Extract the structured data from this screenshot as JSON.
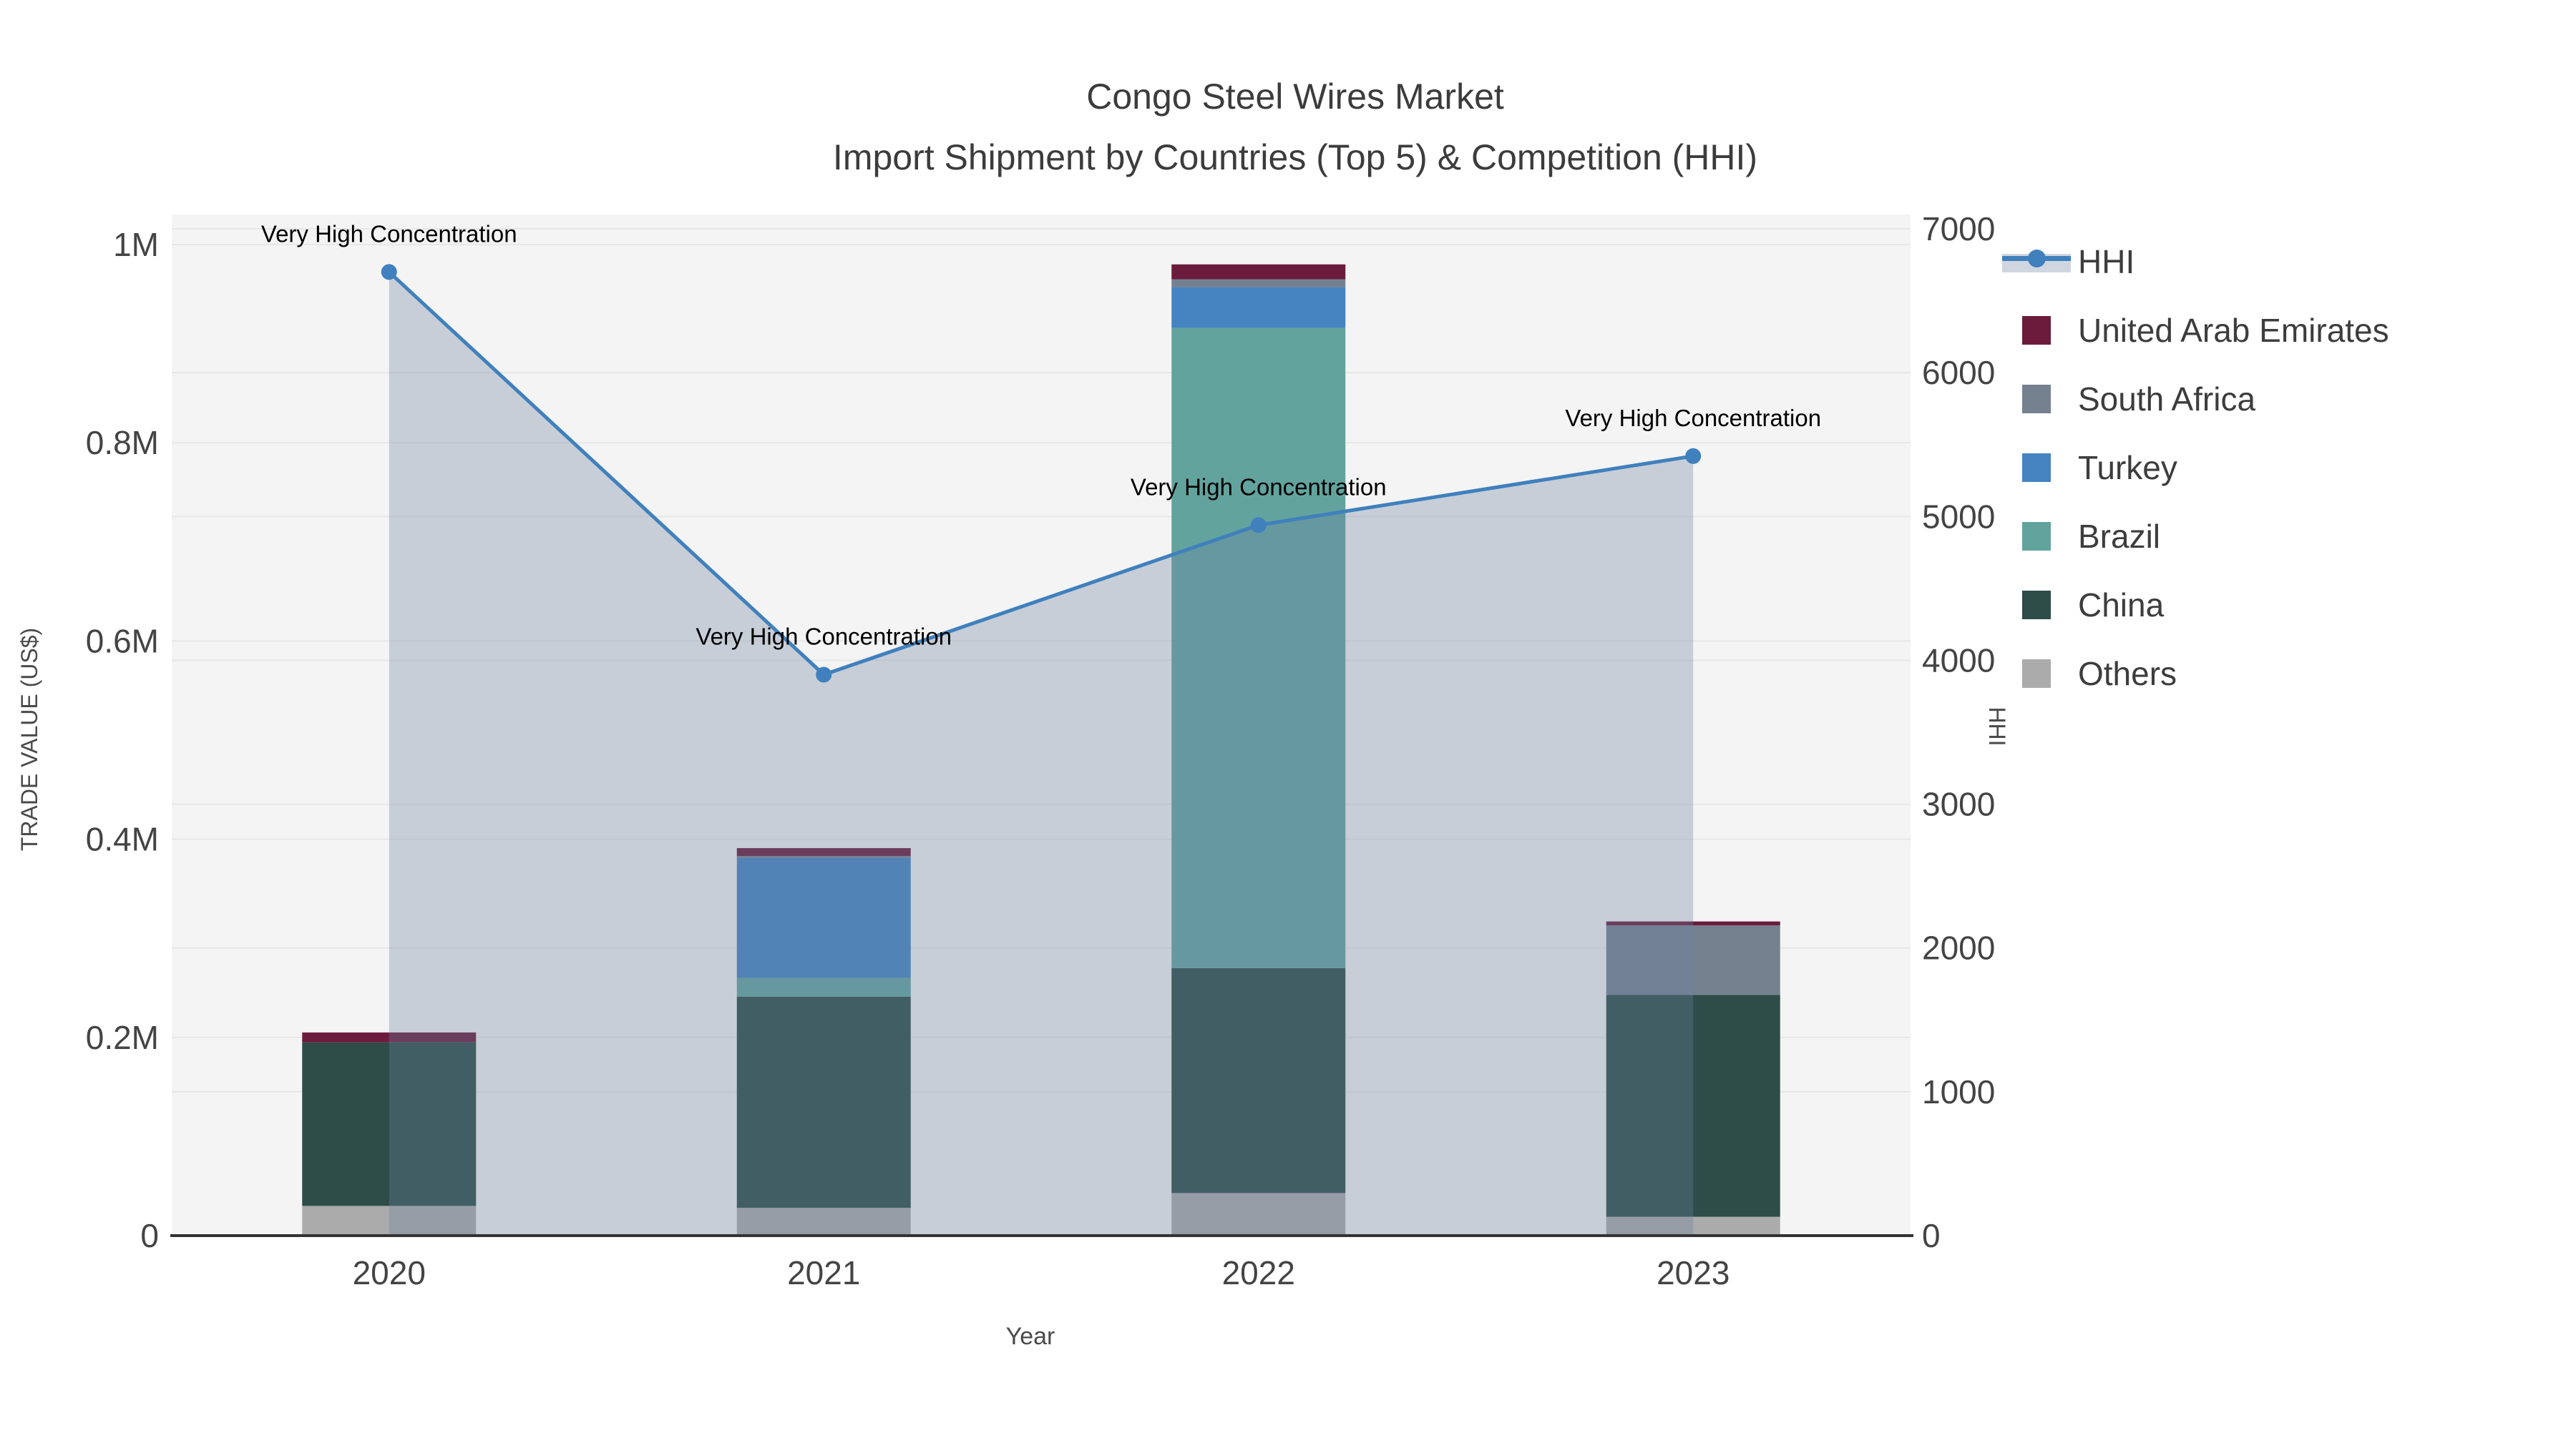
{
  "title": {
    "line1": "Congo Steel Wires Market",
    "line2": "Import Shipment by Countries (Top 5) & Competition (HHI)"
  },
  "chart_data": {
    "type": "bar",
    "subtype": "stacked-bars-with-hhi-line-and-area",
    "categories": [
      "2020",
      "2021",
      "2022",
      "2023"
    ],
    "series": [
      {
        "name": "Others",
        "color": "#ababab",
        "values": [
          30000,
          28000,
          43000,
          19000
        ]
      },
      {
        "name": "China",
        "color": "#2e4c48",
        "values": [
          165000,
          213000,
          227000,
          224000
        ]
      },
      {
        "name": "Brazil",
        "color": "#63a39e",
        "values": [
          0,
          19000,
          646000,
          0
        ]
      },
      {
        "name": "Turkey",
        "color": "#4583c1",
        "values": [
          0,
          121000,
          41000,
          0
        ]
      },
      {
        "name": "South Africa",
        "color": "#75818f",
        "values": [
          0,
          2000,
          8000,
          70000
        ]
      },
      {
        "name": "United Arab Emirates",
        "color": "#6b1c3c",
        "values": [
          10000,
          8000,
          15000,
          4000
        ]
      }
    ],
    "stack_totals": [
      205000,
      391000,
      980000,
      317000
    ],
    "line_series": {
      "name": "HHI",
      "color": "#4080bd",
      "area_fill": "rgba(110,132,160,0.33)",
      "values": [
        6700,
        3900,
        4940,
        5420
      ]
    },
    "annotations": [
      {
        "text": "Very High Concentration",
        "category": "2020"
      },
      {
        "text": "Very High Concentration",
        "category": "2021"
      },
      {
        "text": "Very High Concentration",
        "category": "2022"
      },
      {
        "text": "Very High Concentration",
        "category": "2023"
      }
    ],
    "axes": {
      "x": {
        "title": "Year",
        "tick_labels": [
          "2020",
          "2021",
          "2022",
          "2023"
        ]
      },
      "left": {
        "title": "TRADE VALUE (US$)",
        "range": [
          0,
          1000000
        ],
        "tick_values": [
          0,
          200000,
          400000,
          600000,
          800000,
          1000000
        ],
        "tick_labels": [
          "0",
          "0.2M",
          "0.4M",
          "0.6M",
          "0.8M",
          "1M"
        ]
      },
      "right": {
        "title": "HHI",
        "range": [
          0,
          7000
        ],
        "tick_values": [
          0,
          1000,
          2000,
          3000,
          4000,
          5000,
          6000,
          7000
        ],
        "tick_labels": [
          "0",
          "1000",
          "2000",
          "3000",
          "4000",
          "5000",
          "6000",
          "7000"
        ]
      }
    },
    "legend": {
      "items": [
        "HHI",
        "United Arab Emirates",
        "South Africa",
        "Turkey",
        "Brazil",
        "China",
        "Others"
      ]
    },
    "plot_bg": "#f4f4f4",
    "grid_color": "#e7e7e7"
  }
}
